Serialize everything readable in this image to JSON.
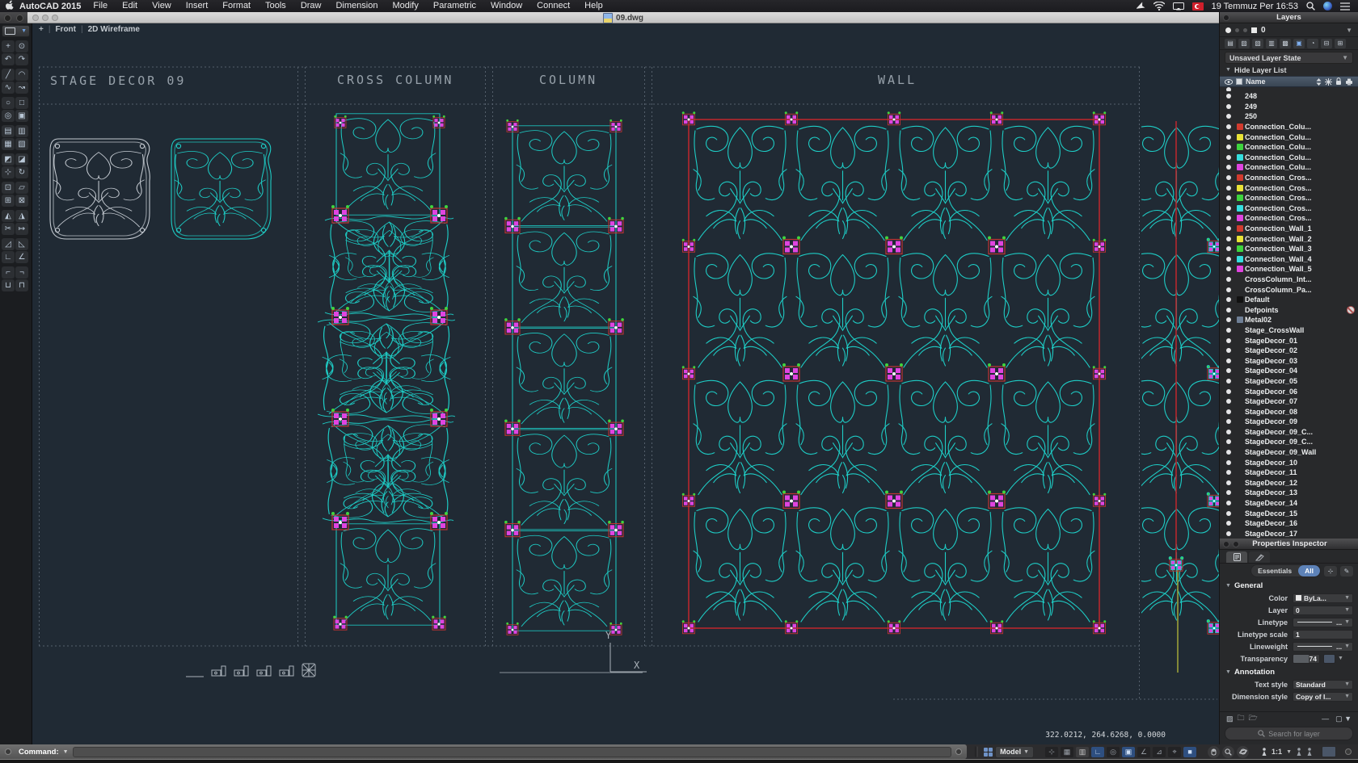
{
  "colors": {
    "cyan": "#1ecdc6",
    "magenta": "#e044e0",
    "conn_red": "#c03333",
    "wall_red": "#b6272e",
    "green": "#3ed53e",
    "pattern_gray": "#c4cad1",
    "olive": "#9aa03a",
    "canvas_bg": "#202a34"
  },
  "menu_bar": {
    "app_name": "AutoCAD 2015",
    "items": [
      "File",
      "Edit",
      "View",
      "Insert",
      "Format",
      "Tools",
      "Draw",
      "Dimension",
      "Modify",
      "Parametric",
      "Window",
      "Connect",
      "Help"
    ],
    "clock": "19 Temmuz Per 16:53"
  },
  "window": {
    "title": "09.dwg"
  },
  "viewport_controls": {
    "expand": "+",
    "view_name": "Front",
    "visual_style": "2D Wireframe"
  },
  "drawing": {
    "section_titles": {
      "stage_decor": "STAGE DECOR 09",
      "cross_column": "CROSS COLUMN",
      "column": "COLUMN",
      "wall": "WALL"
    },
    "ucs": {
      "x_label": "X",
      "y_label": "Y"
    },
    "coordinates": "322.0212, 264.6268, 0.0000"
  },
  "tool_palette": {
    "tools": [
      {
        "name": "select-tool-icon",
        "glyph": "+"
      },
      {
        "name": "ucs-sphere-icon",
        "glyph": "⊙"
      },
      {
        "name": "undo-icon",
        "glyph": "↶"
      },
      {
        "name": "redo-icon",
        "glyph": "↷"
      },
      {
        "name": "line-tool-icon",
        "glyph": "╱"
      },
      {
        "name": "arc-tool-icon",
        "glyph": "◠"
      },
      {
        "name": "polyline-tool-icon",
        "glyph": "∿"
      },
      {
        "name": "spline-tool-icon",
        "glyph": "↝"
      },
      {
        "name": "circle-tool-icon",
        "glyph": "○"
      },
      {
        "name": "rectangle-tool-icon",
        "glyph": "□"
      },
      {
        "name": "ellipse-tool-icon",
        "glyph": "◎"
      },
      {
        "name": "region-tool-icon",
        "glyph": "▣"
      },
      {
        "name": "hatch-tool-icon",
        "glyph": "▤"
      },
      {
        "name": "gradient-tool-icon",
        "glyph": "▥"
      },
      {
        "name": "block-insert-icon",
        "glyph": "▦"
      },
      {
        "name": "block-create-icon",
        "glyph": "▧"
      },
      {
        "name": "solid-tool-icon",
        "glyph": "◩"
      },
      {
        "name": "surface-tool-icon",
        "glyph": "◪"
      },
      {
        "name": "move-tool-icon",
        "glyph": "⊹"
      },
      {
        "name": "rotate-tool-icon",
        "glyph": "↻"
      },
      {
        "name": "scale-tool-icon",
        "glyph": "⊡"
      },
      {
        "name": "stretch-tool-icon",
        "glyph": "▱"
      },
      {
        "name": "copy-tool-icon",
        "glyph": "⊞"
      },
      {
        "name": "array-tool-icon",
        "glyph": "⊠"
      },
      {
        "name": "mirror-tool-icon",
        "glyph": "◭"
      },
      {
        "name": "offset-tool-icon",
        "glyph": "◮"
      },
      {
        "name": "trim-tool-icon",
        "glyph": "✂"
      },
      {
        "name": "extend-tool-icon",
        "glyph": "↦"
      },
      {
        "name": "fillet-tool-icon",
        "glyph": "◿"
      },
      {
        "name": "chamfer-tool-icon",
        "glyph": "◺"
      },
      {
        "name": "dim-linear-icon",
        "glyph": "∟"
      },
      {
        "name": "dim-angular-icon",
        "glyph": "∠"
      },
      {
        "name": "measure-tool-icon",
        "glyph": "⌐"
      },
      {
        "name": "area-tool-icon",
        "glyph": "¬"
      },
      {
        "name": "join-tool-icon",
        "glyph": "⊔"
      },
      {
        "name": "break-tool-icon",
        "glyph": "⊓"
      }
    ]
  },
  "layers_panel": {
    "title": "Layers",
    "current_layer": "0",
    "layer_state": "Unsaved Layer State",
    "hide_list_label": "Hide Layer List",
    "name_column": "Name",
    "layers": [
      {
        "name": "",
        "color": null,
        "partial": true
      },
      {
        "name": "248",
        "color": null
      },
      {
        "name": "249",
        "color": null
      },
      {
        "name": "250",
        "color": null
      },
      {
        "name": "Connection_Colu...",
        "color": "#d23b2e"
      },
      {
        "name": "Connection_Colu...",
        "color": "#e8e337"
      },
      {
        "name": "Connection_Colu...",
        "color": "#3ed53e"
      },
      {
        "name": "Connection_Colu...",
        "color": "#35dede"
      },
      {
        "name": "Connection_Colu...",
        "color": "#e044e0"
      },
      {
        "name": "Connection_Cros...",
        "color": "#d23b2e"
      },
      {
        "name": "Connection_Cros...",
        "color": "#e8e337"
      },
      {
        "name": "Connection_Cros...",
        "color": "#3ed53e"
      },
      {
        "name": "Connection_Cros...",
        "color": "#35dede"
      },
      {
        "name": "Connection_Cros...",
        "color": "#e044e0"
      },
      {
        "name": "Connection_Wall_1",
        "color": "#d23b2e"
      },
      {
        "name": "Connection_Wall_2",
        "color": "#e8e337"
      },
      {
        "name": "Connection_Wall_3",
        "color": "#3ed53e"
      },
      {
        "name": "Connection_Wall_4",
        "color": "#35dede"
      },
      {
        "name": "Connection_Wall_5",
        "color": "#e044e0"
      },
      {
        "name": "CrossColumn_Int...",
        "color": null
      },
      {
        "name": "CrossColumn_Pa...",
        "color": null
      },
      {
        "name": "Default",
        "color": "#111111"
      },
      {
        "name": "Defpoints",
        "color": null,
        "noprint": true
      },
      {
        "name": "Metal02",
        "color": "#6f7f96"
      },
      {
        "name": "Stage_CrossWall",
        "color": null
      },
      {
        "name": "StageDecor_01",
        "color": null
      },
      {
        "name": "StageDecor_02",
        "color": null
      },
      {
        "name": "StageDecor_03",
        "color": null
      },
      {
        "name": "StageDecor_04",
        "color": null
      },
      {
        "name": "StageDecor_05",
        "color": null
      },
      {
        "name": "StageDecor_06",
        "color": null
      },
      {
        "name": "StageDecor_07",
        "color": null
      },
      {
        "name": "StageDecor_08",
        "color": null
      },
      {
        "name": "StageDecor_09",
        "color": null
      },
      {
        "name": "StageDecor_09_C...",
        "color": null
      },
      {
        "name": "StageDecor_09_C...",
        "color": null
      },
      {
        "name": "StageDecor_09_Wall",
        "color": null
      },
      {
        "name": "StageDecor_10",
        "color": null
      },
      {
        "name": "StageDecor_11",
        "color": null
      },
      {
        "name": "StageDecor_12",
        "color": null
      },
      {
        "name": "StageDecor_13",
        "color": null
      },
      {
        "name": "StageDecor_14",
        "color": null
      },
      {
        "name": "StageDecor_15",
        "color": null
      },
      {
        "name": "StageDecor_16",
        "color": null
      },
      {
        "name": "StageDecor_17",
        "color": null
      }
    ]
  },
  "properties_panel": {
    "title": "Properties Inspector",
    "tabs": {
      "essentials": "Essentials",
      "all": "All",
      "selected": "All"
    },
    "general": {
      "title": "General",
      "color_label": "Color",
      "color_value": "ByLa...",
      "layer_label": "Layer",
      "layer_value": "0",
      "linetype_label": "Linetype",
      "linetype_value": "...",
      "linetype_scale_label": "Linetype scale",
      "linetype_scale_value": "1",
      "lineweight_label": "Lineweight",
      "lineweight_value": "...",
      "transparency_label": "Transparency",
      "transparency_value": "74"
    },
    "annotation": {
      "title": "Annotation",
      "text_style_label": "Text style",
      "text_style_value": "Standard",
      "dim_style_label": "Dimension style",
      "dim_style_value": "Copy of I..."
    },
    "search_placeholder": "Search for layer"
  },
  "command_bar": {
    "label": "Command:"
  },
  "status_bar": {
    "model_label": "Model",
    "annotation_scale": "1:1",
    "toggles": [
      {
        "name": "infer-constraints-toggle",
        "glyph": "⊹",
        "state": "off"
      },
      {
        "name": "snap-mode-toggle",
        "glyph": "▦",
        "state": "off"
      },
      {
        "name": "grid-display-toggle",
        "glyph": "▥",
        "state": "dim"
      },
      {
        "name": "ortho-mode-toggle",
        "glyph": "∟",
        "state": "on"
      },
      {
        "name": "polar-tracking-toggle",
        "glyph": "◎",
        "state": "off"
      },
      {
        "name": "object-snap-toggle",
        "glyph": "▣",
        "state": "on"
      },
      {
        "name": "object-snap-tracking-toggle",
        "glyph": "∠",
        "state": "off"
      },
      {
        "name": "dynamic-ucs-toggle",
        "glyph": "⊿",
        "state": "off"
      },
      {
        "name": "dynamic-input-toggle",
        "glyph": "⌖",
        "state": "off"
      },
      {
        "name": "lineweight-toggle",
        "glyph": "■",
        "state": "on"
      }
    ]
  }
}
